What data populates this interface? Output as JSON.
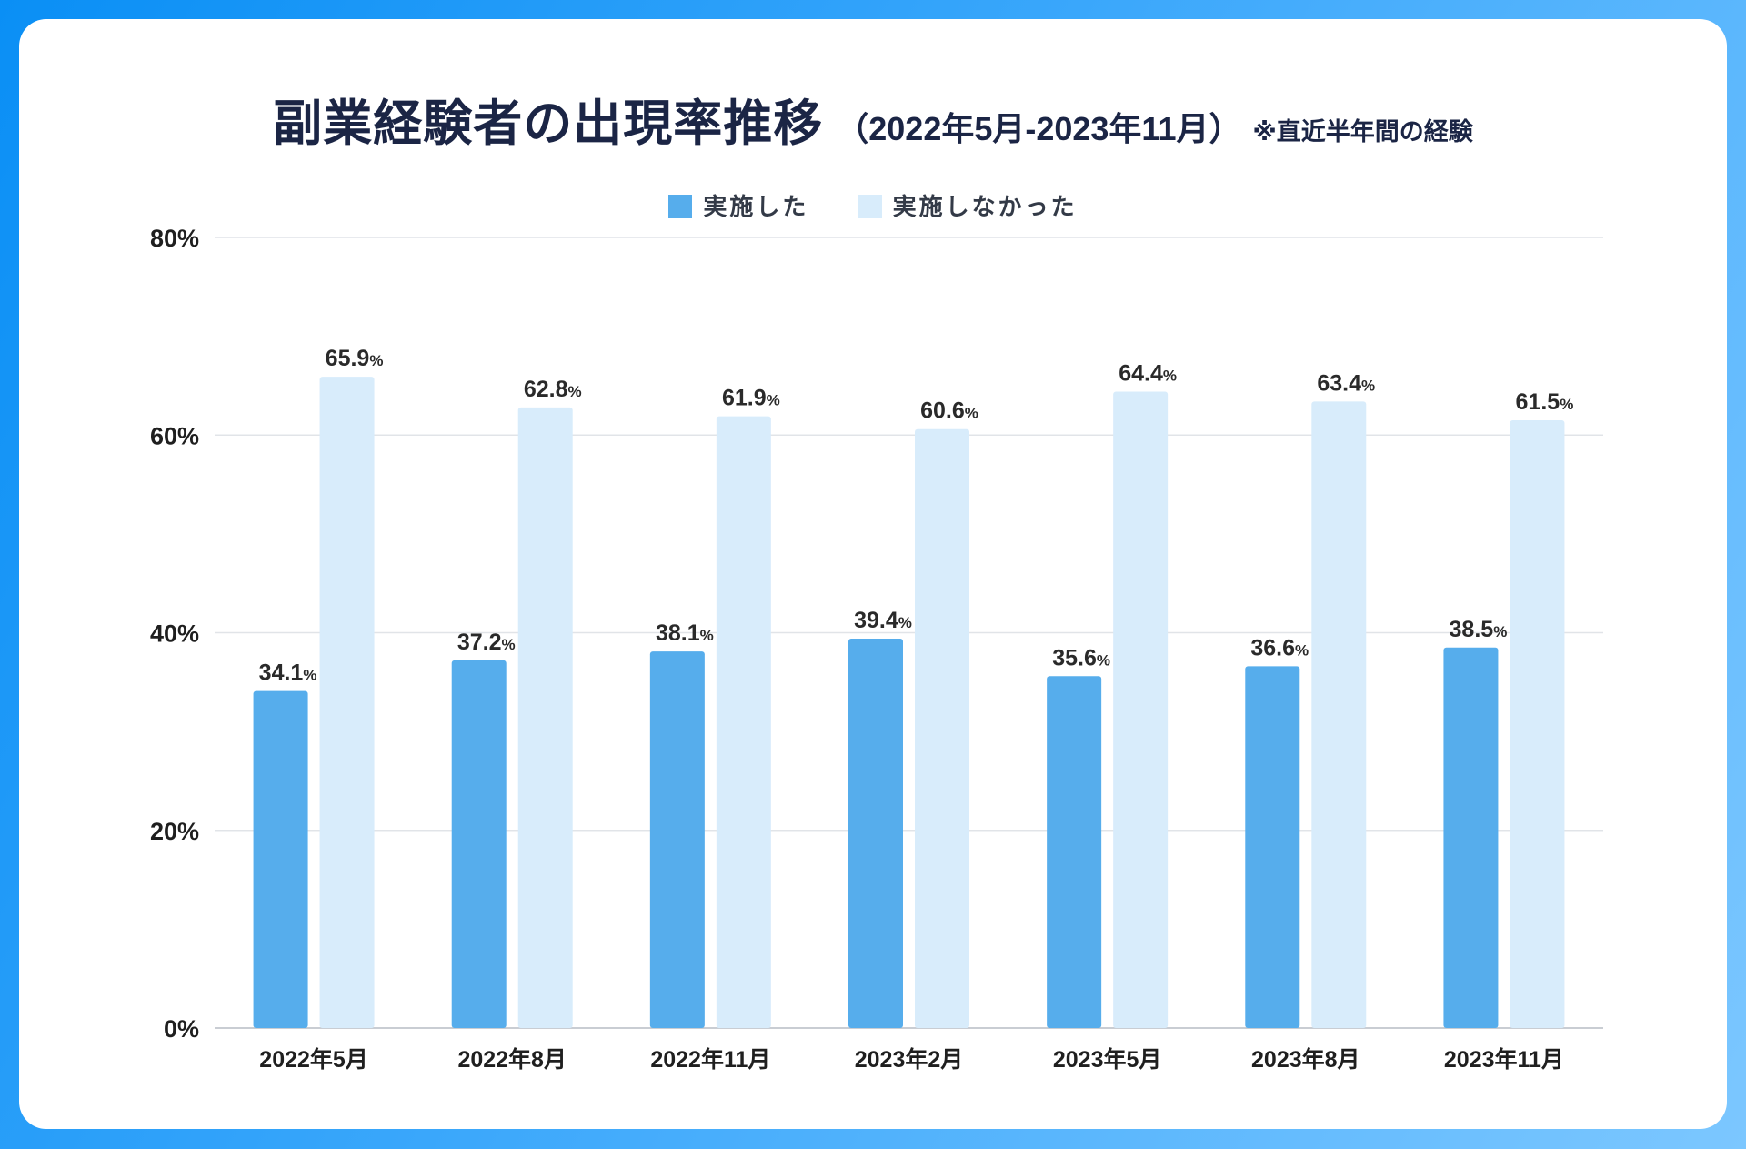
{
  "title": {
    "main": "副業経験者の出現率推移",
    "period": "（2022年5月-2023年11月）",
    "note": "※直近半年間の経験"
  },
  "legend": [
    {
      "label": "実施した",
      "color": "#56adec"
    },
    {
      "label": "実施しなかった",
      "color": "#d8ecfb"
    }
  ],
  "chart_data": {
    "type": "bar",
    "title": "副業経験者の出現率推移（2022年5月-2023年11月）※直近半年間の経験",
    "categories": [
      "2022年5月",
      "2022年8月",
      "2022年11月",
      "2023年2月",
      "2023年5月",
      "2023年8月",
      "2023年11月"
    ],
    "series": [
      {
        "name": "実施した",
        "color": "#56adec",
        "values": [
          34.1,
          37.2,
          38.1,
          39.4,
          35.6,
          36.6,
          38.5
        ]
      },
      {
        "name": "実施しなかった",
        "color": "#d8ecfb",
        "values": [
          65.9,
          62.8,
          61.9,
          60.6,
          64.4,
          63.4,
          61.5
        ]
      }
    ],
    "ylim": [
      0,
      80
    ],
    "yticks": [
      0,
      20,
      40,
      60,
      80
    ],
    "tick_suffix": "%",
    "value_suffix": "%",
    "grid": true,
    "legend_position": "top-center",
    "xlabel": "",
    "ylabel": ""
  }
}
